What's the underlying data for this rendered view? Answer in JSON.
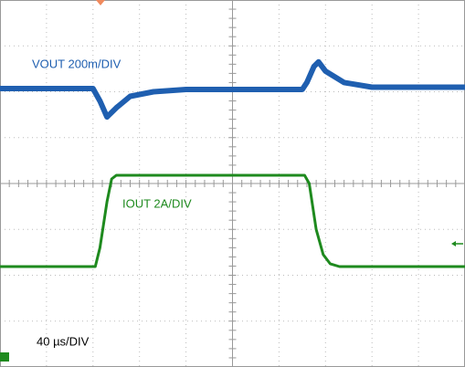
{
  "chart_data": {
    "type": "line",
    "xlim": [
      0,
      10
    ],
    "ylim": [
      0,
      8
    ],
    "series": [
      {
        "name": "VOUT 200m/DIV",
        "color": "#1f5fb0",
        "x": [
          0,
          2.0,
          2.15,
          2.3,
          2.5,
          2.8,
          3.3,
          4,
          6.5,
          6.6,
          6.75,
          6.85,
          7.0,
          7.4,
          8,
          10
        ],
        "values": [
          6.07,
          6.07,
          5.8,
          5.45,
          5.65,
          5.9,
          6.0,
          6.05,
          6.05,
          6.2,
          6.55,
          6.65,
          6.45,
          6.2,
          6.1,
          6.1
        ]
      },
      {
        "name": "IOUT 2A/DIV",
        "color": "#1e8a1e",
        "x": [
          0,
          2.05,
          2.15,
          2.3,
          2.4,
          2.5,
          6.55,
          6.65,
          6.8,
          6.95,
          7.1,
          7.3,
          10
        ],
        "values": [
          2.19,
          2.19,
          2.6,
          3.6,
          4.1,
          4.18,
          4.18,
          4.0,
          3.0,
          2.45,
          2.25,
          2.19,
          2.19
        ]
      }
    ],
    "timebase": "40 µs/DIV"
  }
}
